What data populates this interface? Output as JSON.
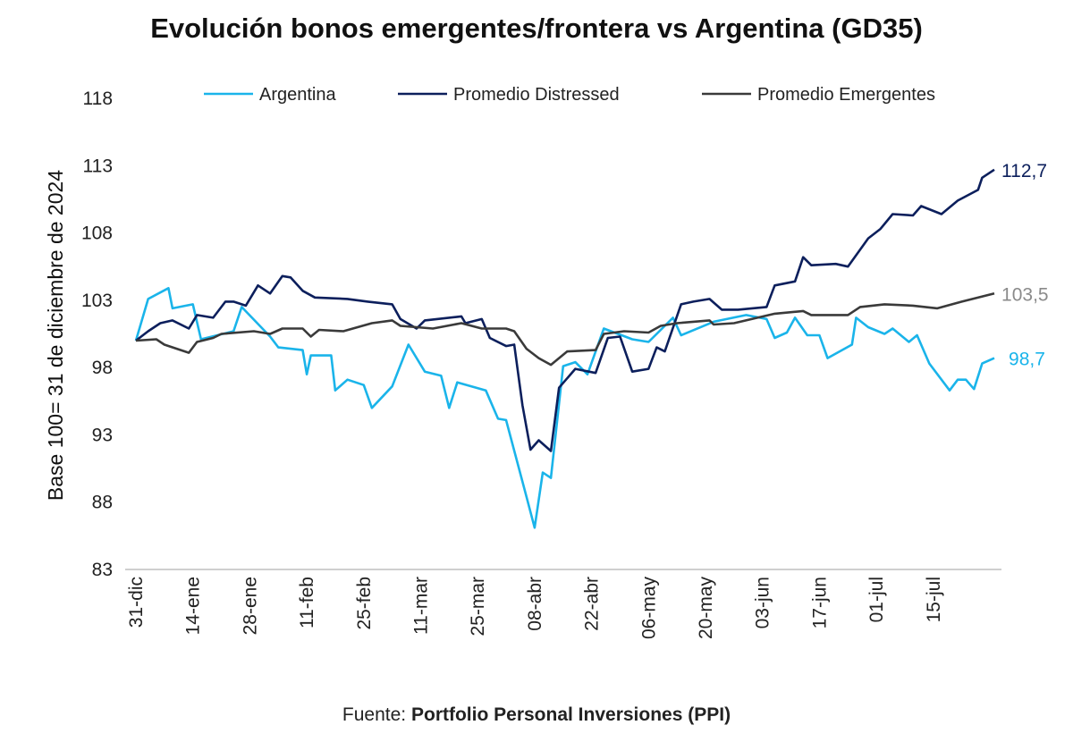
{
  "chart_data": {
    "type": "line",
    "title": "Evolución bonos emergentes/frontera vs Argentina (GD35)",
    "ylabel": "Base 100=  31 de diciembre de 2024",
    "xlabel": "",
    "ylim": [
      83,
      118
    ],
    "yticks": [
      118,
      113,
      108,
      103,
      98,
      93,
      88,
      83
    ],
    "xticks": [
      "31-dic",
      "14-ene",
      "28-ene",
      "11-feb",
      "25-feb",
      "11-mar",
      "25-mar",
      "08-abr",
      "22-abr",
      "06-may",
      "20-may",
      "03-jun",
      "17-jun",
      "01-jul",
      "15-jul"
    ],
    "grid": false,
    "legend": "top",
    "series": [
      {
        "name": "Argentina",
        "color": "#1ab4ea",
        "end_label": "98,7",
        "points": [
          [
            "2024-12-31",
            100
          ],
          [
            "2025-01-03",
            103.1
          ],
          [
            "2025-01-08",
            103.9
          ],
          [
            "2025-01-09",
            102.4
          ],
          [
            "2025-01-14",
            102.7
          ],
          [
            "2025-01-16",
            100.1
          ],
          [
            "2025-01-24",
            100.7
          ],
          [
            "2025-01-26",
            102.5
          ],
          [
            "2025-02-02",
            100.3
          ],
          [
            "2025-02-04",
            99.5
          ],
          [
            "2025-02-10",
            99.3
          ],
          [
            "2025-02-11",
            97.5
          ],
          [
            "2025-02-12",
            98.9
          ],
          [
            "2025-02-17",
            98.9
          ],
          [
            "2025-02-18",
            96.3
          ],
          [
            "2025-02-21",
            97.1
          ],
          [
            "2025-02-25",
            96.7
          ],
          [
            "2025-02-27",
            95.0
          ],
          [
            "2025-03-04",
            96.6
          ],
          [
            "2025-03-08",
            99.7
          ],
          [
            "2025-03-12",
            97.7
          ],
          [
            "2025-03-16",
            97.4
          ],
          [
            "2025-03-18",
            95.0
          ],
          [
            "2025-03-20",
            96.9
          ],
          [
            "2025-03-27",
            96.3
          ],
          [
            "2025-03-30",
            94.2
          ],
          [
            "2025-04-01",
            94.1
          ],
          [
            "2025-04-06",
            88.4
          ],
          [
            "2025-04-08",
            86.1
          ],
          [
            "2025-04-10",
            90.2
          ],
          [
            "2025-04-12",
            89.8
          ],
          [
            "2025-04-15",
            98.1
          ],
          [
            "2025-04-18",
            98.4
          ],
          [
            "2025-04-21",
            97.5
          ],
          [
            "2025-04-25",
            100.9
          ],
          [
            "2025-05-02",
            100.1
          ],
          [
            "2025-05-06",
            99.9
          ],
          [
            "2025-05-12",
            101.7
          ],
          [
            "2025-05-14",
            100.4
          ],
          [
            "2025-05-22",
            101.4
          ],
          [
            "2025-05-30",
            101.9
          ],
          [
            "2025-06-04",
            101.6
          ],
          [
            "2025-06-06",
            100.2
          ],
          [
            "2025-06-09",
            100.6
          ],
          [
            "2025-06-11",
            101.7
          ],
          [
            "2025-06-14",
            100.4
          ],
          [
            "2025-06-17",
            100.4
          ],
          [
            "2025-06-19",
            98.7
          ],
          [
            "2025-06-25",
            99.7
          ],
          [
            "2025-06-26",
            101.7
          ],
          [
            "2025-06-29",
            101.0
          ],
          [
            "2025-07-03",
            100.5
          ],
          [
            "2025-07-05",
            100.9
          ],
          [
            "2025-07-09",
            99.9
          ],
          [
            "2025-07-11",
            100.4
          ],
          [
            "2025-07-14",
            98.3
          ],
          [
            "2025-07-19",
            96.3
          ],
          [
            "2025-07-21",
            97.1
          ],
          [
            "2025-07-23",
            97.1
          ],
          [
            "2025-07-25",
            96.4
          ],
          [
            "2025-07-27",
            98.3
          ],
          [
            "2025-07-30",
            98.7
          ]
        ]
      },
      {
        "name": "Promedio Distressed",
        "color": "#0c1f5c",
        "end_label": "112,7",
        "points": [
          [
            "2024-12-31",
            100
          ],
          [
            "2025-01-03",
            100.7
          ],
          [
            "2025-01-06",
            101.3
          ],
          [
            "2025-01-09",
            101.5
          ],
          [
            "2025-01-13",
            100.9
          ],
          [
            "2025-01-15",
            101.9
          ],
          [
            "2025-01-19",
            101.7
          ],
          [
            "2025-01-22",
            102.9
          ],
          [
            "2025-01-24",
            102.9
          ],
          [
            "2025-01-27",
            102.6
          ],
          [
            "2025-01-30",
            104.1
          ],
          [
            "2025-02-02",
            103.5
          ],
          [
            "2025-02-05",
            104.8
          ],
          [
            "2025-02-07",
            104.7
          ],
          [
            "2025-02-10",
            103.7
          ],
          [
            "2025-02-13",
            103.2
          ],
          [
            "2025-02-21",
            103.1
          ],
          [
            "2025-02-26",
            102.9
          ],
          [
            "2025-03-04",
            102.7
          ],
          [
            "2025-03-06",
            101.6
          ],
          [
            "2025-03-10",
            100.9
          ],
          [
            "2025-03-12",
            101.5
          ],
          [
            "2025-03-21",
            101.8
          ],
          [
            "2025-03-22",
            101.3
          ],
          [
            "2025-03-26",
            101.6
          ],
          [
            "2025-03-28",
            100.2
          ],
          [
            "2025-04-01",
            99.6
          ],
          [
            "2025-04-03",
            99.7
          ],
          [
            "2025-04-05",
            95.2
          ],
          [
            "2025-04-07",
            91.9
          ],
          [
            "2025-04-09",
            92.6
          ],
          [
            "2025-04-12",
            91.8
          ],
          [
            "2025-04-14",
            96.5
          ],
          [
            "2025-04-18",
            97.9
          ],
          [
            "2025-04-23",
            97.6
          ],
          [
            "2025-04-26",
            100.2
          ],
          [
            "2025-04-29",
            100.3
          ],
          [
            "2025-05-02",
            97.7
          ],
          [
            "2025-05-06",
            97.9
          ],
          [
            "2025-05-08",
            99.5
          ],
          [
            "2025-05-10",
            99.2
          ],
          [
            "2025-05-14",
            102.7
          ],
          [
            "2025-05-17",
            102.9
          ],
          [
            "2025-05-21",
            103.1
          ],
          [
            "2025-05-24",
            102.3
          ],
          [
            "2025-05-28",
            102.3
          ],
          [
            "2025-06-04",
            102.5
          ],
          [
            "2025-06-06",
            104.1
          ],
          [
            "2025-06-11",
            104.4
          ],
          [
            "2025-06-13",
            106.2
          ],
          [
            "2025-06-15",
            105.6
          ],
          [
            "2025-06-21",
            105.7
          ],
          [
            "2025-06-24",
            105.5
          ],
          [
            "2025-06-29",
            107.6
          ],
          [
            "2025-07-02",
            108.3
          ],
          [
            "2025-07-05",
            109.4
          ],
          [
            "2025-07-10",
            109.3
          ],
          [
            "2025-07-12",
            110.0
          ],
          [
            "2025-07-17",
            109.4
          ],
          [
            "2025-07-21",
            110.4
          ],
          [
            "2025-07-26",
            111.2
          ],
          [
            "2025-07-27",
            112.1
          ],
          [
            "2025-07-30",
            112.7
          ]
        ]
      },
      {
        "name": "Promedio Emergentes",
        "color": "#3a3a3a",
        "end_label": "103,5",
        "points": [
          [
            "2024-12-31",
            100
          ],
          [
            "2025-01-05",
            100.1
          ],
          [
            "2025-01-07",
            99.7
          ],
          [
            "2025-01-13",
            99.1
          ],
          [
            "2025-01-15",
            99.9
          ],
          [
            "2025-01-19",
            100.2
          ],
          [
            "2025-01-21",
            100.5
          ],
          [
            "2025-01-29",
            100.7
          ],
          [
            "2025-02-02",
            100.5
          ],
          [
            "2025-02-05",
            100.9
          ],
          [
            "2025-02-10",
            100.9
          ],
          [
            "2025-02-12",
            100.3
          ],
          [
            "2025-02-14",
            100.8
          ],
          [
            "2025-02-20",
            100.7
          ],
          [
            "2025-02-27",
            101.3
          ],
          [
            "2025-03-04",
            101.5
          ],
          [
            "2025-03-06",
            101.1
          ],
          [
            "2025-03-14",
            100.9
          ],
          [
            "2025-03-21",
            101.3
          ],
          [
            "2025-03-26",
            100.9
          ],
          [
            "2025-04-01",
            100.9
          ],
          [
            "2025-04-03",
            100.7
          ],
          [
            "2025-04-06",
            99.4
          ],
          [
            "2025-04-09",
            98.7
          ],
          [
            "2025-04-12",
            98.2
          ],
          [
            "2025-04-16",
            99.2
          ],
          [
            "2025-04-23",
            99.3
          ],
          [
            "2025-04-25",
            100.5
          ],
          [
            "2025-04-30",
            100.7
          ],
          [
            "2025-05-06",
            100.6
          ],
          [
            "2025-05-09",
            101.1
          ],
          [
            "2025-05-13",
            101.3
          ],
          [
            "2025-05-21",
            101.5
          ],
          [
            "2025-05-22",
            101.2
          ],
          [
            "2025-05-27",
            101.3
          ],
          [
            "2025-06-06",
            102.0
          ],
          [
            "2025-06-13",
            102.2
          ],
          [
            "2025-06-15",
            101.9
          ],
          [
            "2025-06-24",
            101.9
          ],
          [
            "2025-06-27",
            102.5
          ],
          [
            "2025-07-03",
            102.7
          ],
          [
            "2025-07-10",
            102.6
          ],
          [
            "2025-07-16",
            102.4
          ],
          [
            "2025-07-22",
            102.9
          ],
          [
            "2025-07-30",
            103.5
          ]
        ]
      }
    ]
  },
  "source": {
    "prefix": "Fuente: ",
    "name": "Portfolio Personal Inversiones (PPI)"
  }
}
